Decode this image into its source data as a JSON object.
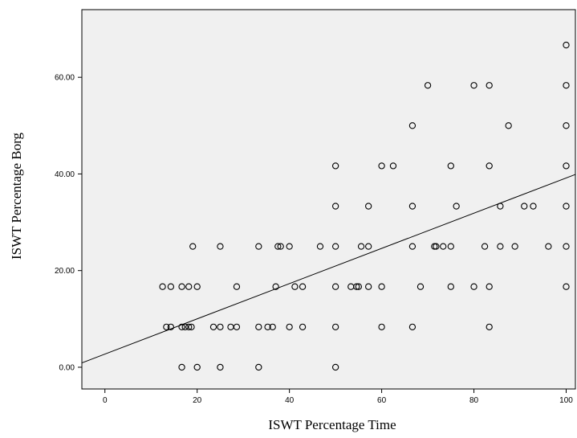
{
  "chart_data": {
    "type": "scatter",
    "xlabel": "ISWT Percentage Time",
    "ylabel": "ISWT Percentage Borg",
    "xlim": [
      -5,
      102
    ],
    "ylim": [
      -4.5,
      74
    ],
    "x_ticks": [
      0,
      20,
      40,
      60,
      80,
      100
    ],
    "x_tick_labels": [
      "0",
      "20",
      "40",
      "60",
      "80",
      "100"
    ],
    "y_ticks": [
      0,
      20,
      40,
      60
    ],
    "y_tick_labels": [
      "0.00",
      "20.00",
      "40.00",
      "60.00"
    ],
    "grid": false,
    "background_color": "#f0f0f0",
    "marker": "open-circle",
    "points": [
      [
        100,
        66.67
      ],
      [
        100,
        58.33
      ],
      [
        100,
        50
      ],
      [
        100,
        41.67
      ],
      [
        100,
        33.33
      ],
      [
        100,
        25
      ],
      [
        100,
        16.67
      ],
      [
        70,
        58.33
      ],
      [
        80,
        58.33
      ],
      [
        83.33,
        58.33
      ],
      [
        66.67,
        50
      ],
      [
        87.5,
        50
      ],
      [
        50,
        41.67
      ],
      [
        60,
        41.67
      ],
      [
        62.5,
        41.67
      ],
      [
        75,
        41.67
      ],
      [
        83.33,
        41.67
      ],
      [
        50,
        33.33
      ],
      [
        57.14,
        33.33
      ],
      [
        66.67,
        33.33
      ],
      [
        76.19,
        33.33
      ],
      [
        85.71,
        33.33
      ],
      [
        90.91,
        33.33
      ],
      [
        92.86,
        33.33
      ],
      [
        19.05,
        25
      ],
      [
        25,
        25
      ],
      [
        33.33,
        25
      ],
      [
        37.5,
        25
      ],
      [
        38.1,
        25
      ],
      [
        40,
        25
      ],
      [
        46.67,
        25
      ],
      [
        50,
        25
      ],
      [
        55.56,
        25
      ],
      [
        57.14,
        25
      ],
      [
        66.67,
        25
      ],
      [
        71.43,
        25
      ],
      [
        71.79,
        25
      ],
      [
        73.33,
        25
      ],
      [
        75,
        25
      ],
      [
        82.35,
        25
      ],
      [
        85.71,
        25
      ],
      [
        88.89,
        25
      ],
      [
        96.15,
        25
      ],
      [
        12.5,
        16.67
      ],
      [
        14.29,
        16.67
      ],
      [
        16.67,
        16.67
      ],
      [
        18.18,
        16.67
      ],
      [
        20,
        16.67
      ],
      [
        28.57,
        16.67
      ],
      [
        37.04,
        16.67
      ],
      [
        41.18,
        16.67
      ],
      [
        42.86,
        16.67
      ],
      [
        50,
        16.67
      ],
      [
        53.33,
        16.67
      ],
      [
        54.55,
        16.67
      ],
      [
        55,
        16.67
      ],
      [
        57.14,
        16.67
      ],
      [
        60,
        16.67
      ],
      [
        68.42,
        16.67
      ],
      [
        75,
        16.67
      ],
      [
        80,
        16.67
      ],
      [
        83.33,
        16.67
      ],
      [
        13.33,
        8.33
      ],
      [
        14.29,
        8.33
      ],
      [
        16.67,
        8.33
      ],
      [
        17.39,
        8.33
      ],
      [
        18.18,
        8.33
      ],
      [
        18.75,
        8.33
      ],
      [
        23.53,
        8.33
      ],
      [
        25,
        8.33
      ],
      [
        27.27,
        8.33
      ],
      [
        28.57,
        8.33
      ],
      [
        33.33,
        8.33
      ],
      [
        35.29,
        8.33
      ],
      [
        36.36,
        8.33
      ],
      [
        40,
        8.33
      ],
      [
        42.86,
        8.33
      ],
      [
        50,
        8.33
      ],
      [
        60,
        8.33
      ],
      [
        66.67,
        8.33
      ],
      [
        83.33,
        8.33
      ],
      [
        16.67,
        0
      ],
      [
        20,
        0
      ],
      [
        25,
        0
      ],
      [
        33.33,
        0
      ],
      [
        50,
        0
      ]
    ],
    "fit_line": {
      "x": [
        -5,
        102
      ],
      "y": [
        0.9,
        39.9
      ]
    }
  }
}
